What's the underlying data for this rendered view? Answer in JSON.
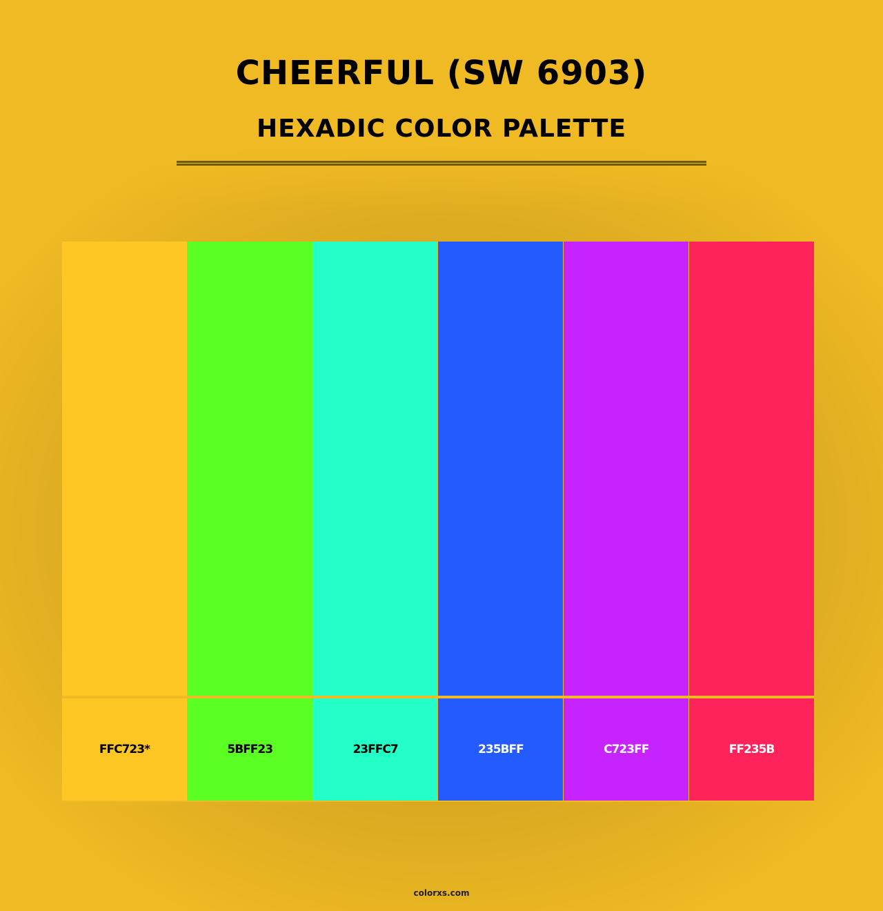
{
  "title": "CHEERFUL (SW 6903)",
  "subtitle": "HEXADIC COLOR PALETTE",
  "colors": [
    {
      "hex": "#FFC723",
      "label": "FFC723*",
      "text_color": "#000000"
    },
    {
      "hex": "#5BFF23",
      "label": "5BFF23",
      "text_color": "#000000"
    },
    {
      "hex": "#23FFC7",
      "label": "23FFC7",
      "text_color": "#000000"
    },
    {
      "hex": "#235BFF",
      "label": "235BFF",
      "text_color": "#FFFFFF"
    },
    {
      "hex": "#C723FF",
      "label": "C723FF",
      "text_color": "#FFFFFF"
    },
    {
      "hex": "#FF235B",
      "label": "FF235B",
      "text_color": "#FFFFFF"
    }
  ],
  "footer": "colorxs.com"
}
